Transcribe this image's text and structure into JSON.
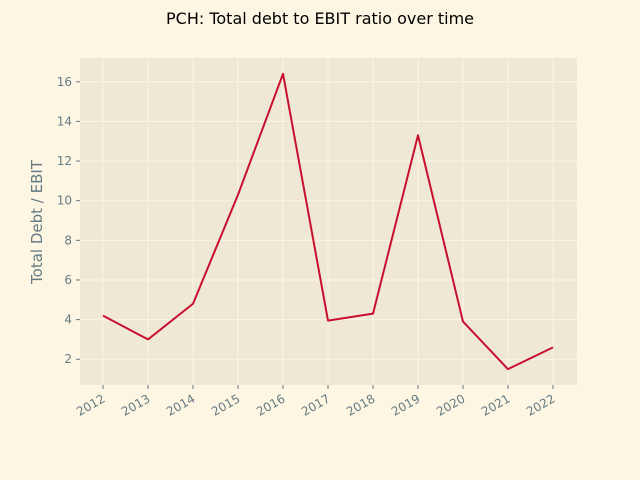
{
  "chart_data": {
    "type": "line",
    "title": "PCH: Total debt to EBIT ratio over time",
    "xlabel": "",
    "ylabel": "Total Debt / EBIT",
    "categories": [
      "2012",
      "2013",
      "2014",
      "2015",
      "2016",
      "2017",
      "2018",
      "2019",
      "2020",
      "2021",
      "2022"
    ],
    "series": [
      {
        "values": [
          4.2,
          3.0,
          4.8,
          10.3,
          16.4,
          3.95,
          4.3,
          13.3,
          3.9,
          1.5,
          2.6
        ]
      }
    ],
    "yticks": [
      2,
      4,
      6,
      8,
      10,
      12,
      14,
      16
    ],
    "ylim": [
      0.7,
      17.2
    ],
    "grid": true,
    "colors": {
      "line": "#c8102e",
      "plot_bg": "#eee8d5",
      "figure_bg": "#fdf6e3",
      "grid": "#fdf6e3",
      "text": "#657b83"
    }
  }
}
